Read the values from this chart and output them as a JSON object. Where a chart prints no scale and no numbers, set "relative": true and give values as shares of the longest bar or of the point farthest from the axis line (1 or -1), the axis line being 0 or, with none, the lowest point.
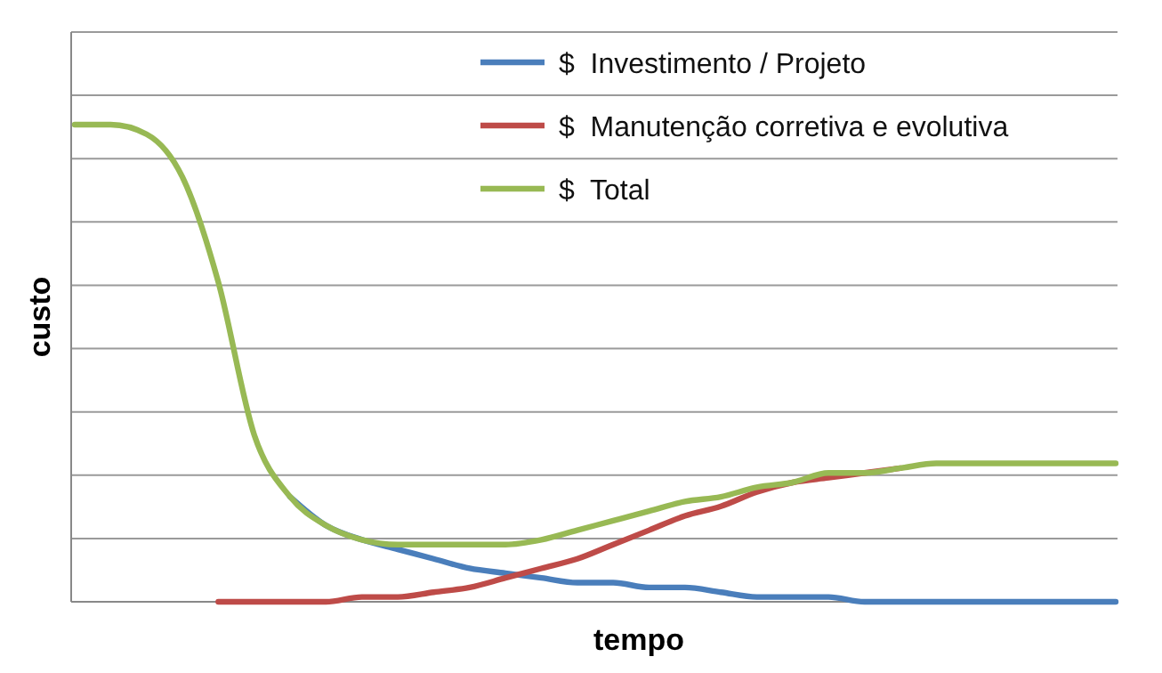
{
  "chart_data": {
    "type": "line",
    "relative": true,
    "xlabel": "tempo",
    "ylabel": "custo",
    "grid": "y",
    "legend": "top right",
    "marker": "none",
    "line_style": "solid",
    "categories": [
      null,
      null,
      null,
      null,
      null,
      null,
      null,
      null,
      null,
      null,
      null,
      null,
      null,
      null,
      null,
      null,
      null,
      null,
      null,
      null,
      null,
      null,
      null,
      null,
      null,
      null,
      null,
      null,
      null,
      null
    ],
    "series": [
      {
        "name": "$  Investimento / Projeto",
        "color": "#4a7ebb",
        "values": [
          null,
          null,
          null,
          null,
          null,
          null,
          0.22,
          0.16,
          0.13,
          0.11,
          0.09,
          0.07,
          0.06,
          0.05,
          0.04,
          0.04,
          0.03,
          0.03,
          0.02,
          0.01,
          0.01,
          0.01,
          0,
          0,
          0,
          0,
          0,
          0,
          0,
          0
        ]
      },
      {
        "name": "$  Manutenção corretiva e evolutiva",
        "color": "#be4b48",
        "values": [
          null,
          null,
          null,
          null,
          0,
          0,
          0,
          0,
          0.01,
          0.01,
          0.02,
          0.03,
          0.05,
          0.07,
          0.09,
          0.12,
          0.15,
          0.18,
          0.2,
          0.23,
          0.25,
          0.26,
          0.27,
          0.28,
          null,
          null,
          null,
          null,
          null,
          null
        ]
      },
      {
        "name": "$  Total",
        "color": "#98b954",
        "values": [
          1,
          1,
          0.98,
          0.89,
          0.67,
          0.35,
          0.22,
          0.16,
          0.13,
          0.12,
          0.12,
          0.12,
          0.12,
          0.13,
          0.15,
          0.17,
          0.19,
          0.21,
          0.22,
          0.24,
          0.25,
          0.27,
          0.27,
          0.28,
          0.29,
          0.29,
          0.29,
          0.29,
          0.29,
          0.29
        ]
      }
    ]
  }
}
